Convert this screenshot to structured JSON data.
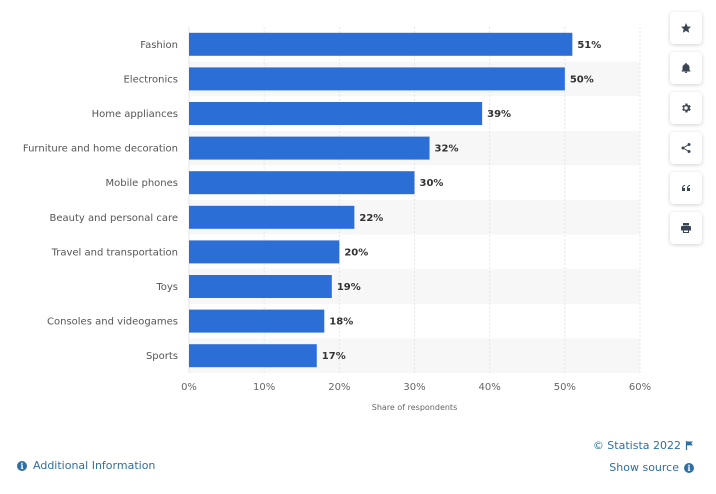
{
  "chart_data": {
    "type": "bar",
    "orientation": "horizontal",
    "categories": [
      "Fashion",
      "Electronics",
      "Home appliances",
      "Furniture and home decoration",
      "Mobile phones",
      "Beauty and personal care",
      "Travel and transportation",
      "Toys",
      "Consoles and videogames",
      "Sports"
    ],
    "values": [
      51,
      50,
      39,
      32,
      30,
      22,
      20,
      19,
      18,
      17
    ],
    "value_labels": [
      "51%",
      "50%",
      "39%",
      "32%",
      "30%",
      "22%",
      "20%",
      "19%",
      "18%",
      "17%"
    ],
    "x_ticks": [
      0,
      10,
      20,
      30,
      40,
      50,
      60
    ],
    "x_tick_labels": [
      "0%",
      "10%",
      "20%",
      "30%",
      "40%",
      "50%",
      "60%"
    ],
    "xlabel": "Share of respondents",
    "xlim": [
      0,
      60
    ],
    "grid": true,
    "bar_color": "#2b6fd6"
  },
  "toolbar": {
    "icons": [
      "star-icon",
      "bell-icon",
      "gear-icon",
      "share-icon",
      "quote-icon",
      "print-icon"
    ]
  },
  "footer": {
    "credit": "© Statista 2022",
    "show_source": "Show source",
    "additional_info": "Additional Information"
  },
  "colors": {
    "link": "#2f6fa3",
    "bar": "#2b6fd6"
  }
}
